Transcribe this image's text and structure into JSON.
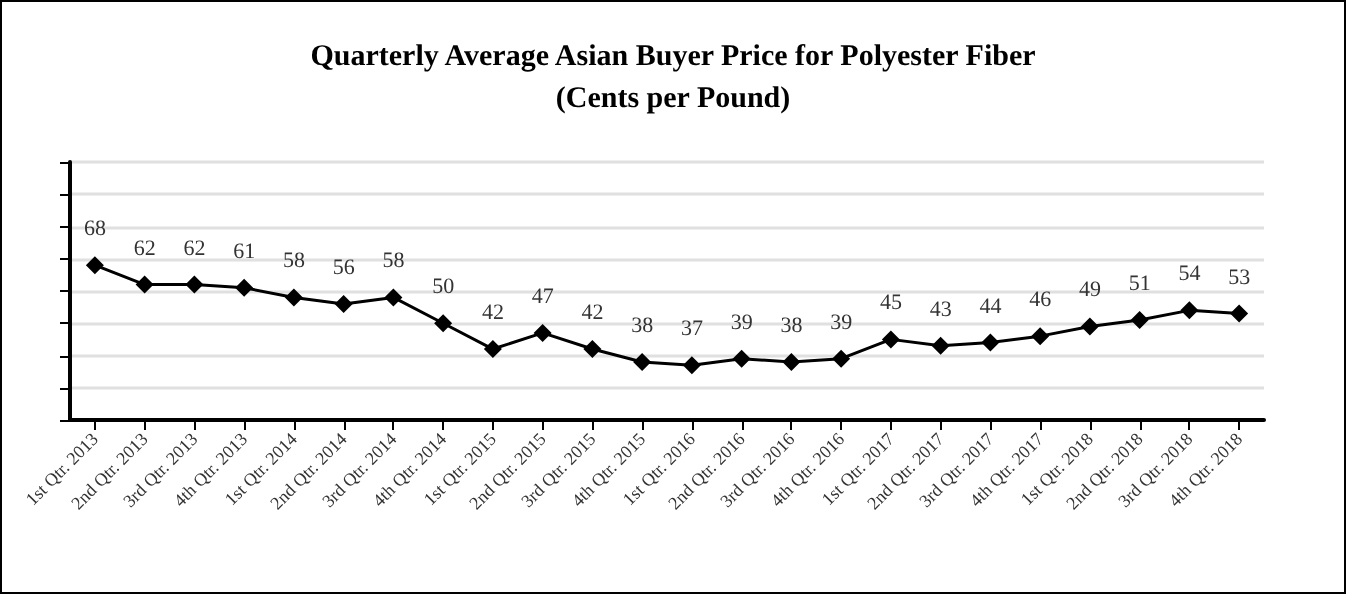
{
  "chart_data": {
    "type": "line",
    "title": "Quarterly Average Asian Buyer Price for Polyester Fiber",
    "subtitle": "(Cents per Pound)",
    "categories": [
      "1st Qtr. 2013",
      "2nd Qtr. 2013",
      "3rd Qtr. 2013",
      "4th Qtr. 2013",
      "1st Qtr. 2014",
      "2nd Qtr. 2014",
      "3rd Qtr. 2014",
      "4th Qtr. 2014",
      "1st Qtr. 2015",
      "2nd Qtr. 2015",
      "3rd Qtr. 2015",
      "4th Qtr. 2015",
      "1st Qtr. 2016",
      "2nd Qtr. 2016",
      "3rd Qtr. 2016",
      "4th Qtr. 2016",
      "1st Qtr. 2017",
      "2nd Qtr. 2017",
      "3rd Qtr. 2017",
      "4th Qtr. 2017",
      "1st Qtr. 2018",
      "2nd Qtr. 2018",
      "3rd Qtr. 2018",
      "4th Qtr. 2018"
    ],
    "series": [
      {
        "color": "#000000",
        "values": [
          68,
          62,
          62,
          61,
          58,
          56,
          58,
          50,
          42,
          47,
          42,
          38,
          37,
          39,
          38,
          39,
          45,
          43,
          44,
          46,
          49,
          51,
          54,
          53
        ]
      }
    ],
    "ylim": [
      20,
      100
    ],
    "yticks": [
      {
        "value": 20,
        "label": null
      },
      {
        "value": 30,
        "label": null
      },
      {
        "value": 40,
        "label": null
      },
      {
        "value": 50,
        "label": null
      },
      {
        "value": 60,
        "label": null
      },
      {
        "value": 70,
        "label": null
      },
      {
        "value": 80,
        "label": null
      },
      {
        "value": 90,
        "label": null
      },
      {
        "value": 100,
        "label": null
      }
    ],
    "tick_labels": "x",
    "grid": "y",
    "data_labels": true,
    "marker": "diamond",
    "line_style": "solid"
  }
}
